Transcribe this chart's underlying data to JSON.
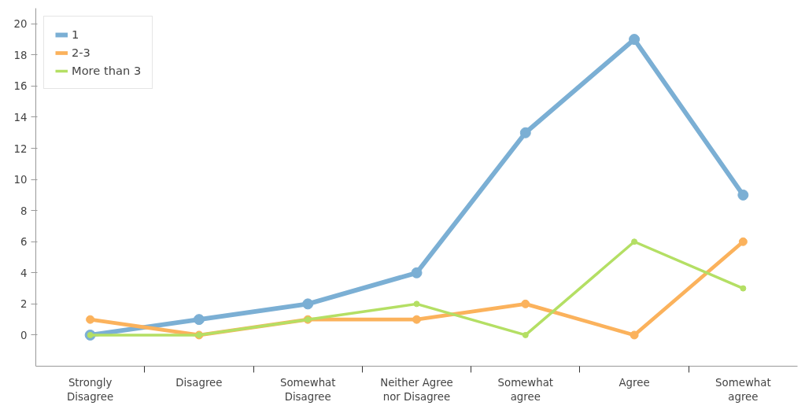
{
  "chart_data": {
    "type": "line",
    "categories": [
      "Strongly Disagree",
      "Disagree",
      "Somewhat Disagree",
      "Neither Agree nor Disagree",
      "Somewhat agree",
      "Agree",
      "Somewhat agree"
    ],
    "series": [
      {
        "name": "1",
        "color": "#7bafd4",
        "values": [
          0,
          1,
          2,
          4,
          13,
          19,
          9
        ]
      },
      {
        "name": "2-3",
        "color": "#fbb25c",
        "values": [
          1,
          0,
          1,
          1,
          2,
          0,
          6
        ]
      },
      {
        "name": "More than 3",
        "color": "#b4df64",
        "values": [
          0,
          0,
          1,
          2,
          0,
          6,
          3
        ]
      }
    ],
    "ylim": [
      -2,
      21
    ],
    "yticks": [
      0,
      2,
      4,
      6,
      8,
      10,
      12,
      14,
      16,
      18,
      20
    ],
    "grid": false,
    "legend": "top left",
    "marker": "circle",
    "line_style": "solid"
  }
}
